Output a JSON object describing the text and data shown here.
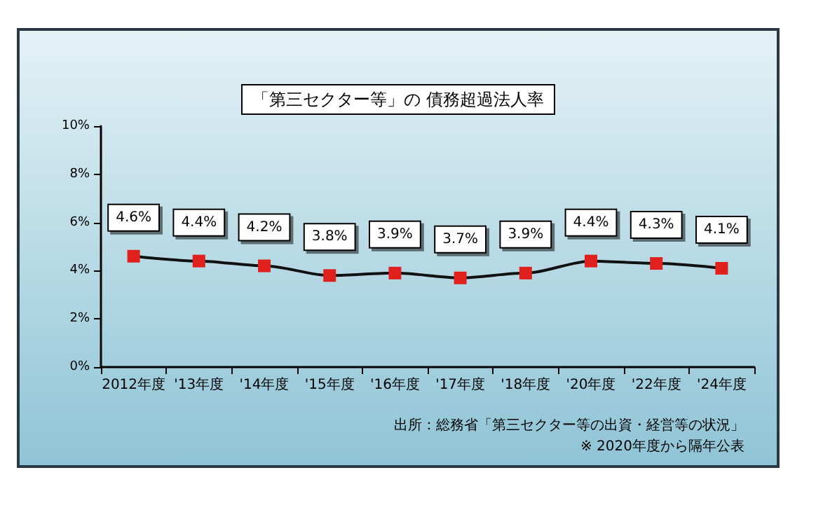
{
  "chart_data": {
    "type": "line",
    "title": "「第三セクター等」の 債務超過法人率",
    "categories": [
      "2012年度",
      "'13年度",
      "'14年度",
      "'15年度",
      "'16年度",
      "'17年度",
      "'18年度",
      "'20年度",
      "'22年度",
      "'24年度"
    ],
    "values": [
      4.6,
      4.4,
      4.2,
      3.8,
      3.9,
      3.7,
      3.9,
      4.4,
      4.3,
      4.1
    ],
    "value_labels": [
      "4.6%",
      "4.4%",
      "4.2%",
      "3.8%",
      "3.9%",
      "3.7%",
      "3.9%",
      "4.4%",
      "4.3%",
      "4.1%"
    ],
    "color": "#e0201c",
    "marker": "square",
    "line_style": "solid",
    "ylim": [
      0,
      10
    ],
    "yticks": [
      {
        "value": 0,
        "label": "0%"
      },
      {
        "value": 2,
        "label": "2%"
      },
      {
        "value": 4,
        "label": "4%"
      },
      {
        "value": 6,
        "label": "6%"
      },
      {
        "value": 8,
        "label": "8%"
      },
      {
        "value": 10,
        "label": "10%"
      }
    ],
    "grid": false,
    "annotations": [
      "出所：総務省「第三セクター等の出資・経営等の状況」",
      "※ 2020年度から隔年公表"
    ]
  }
}
